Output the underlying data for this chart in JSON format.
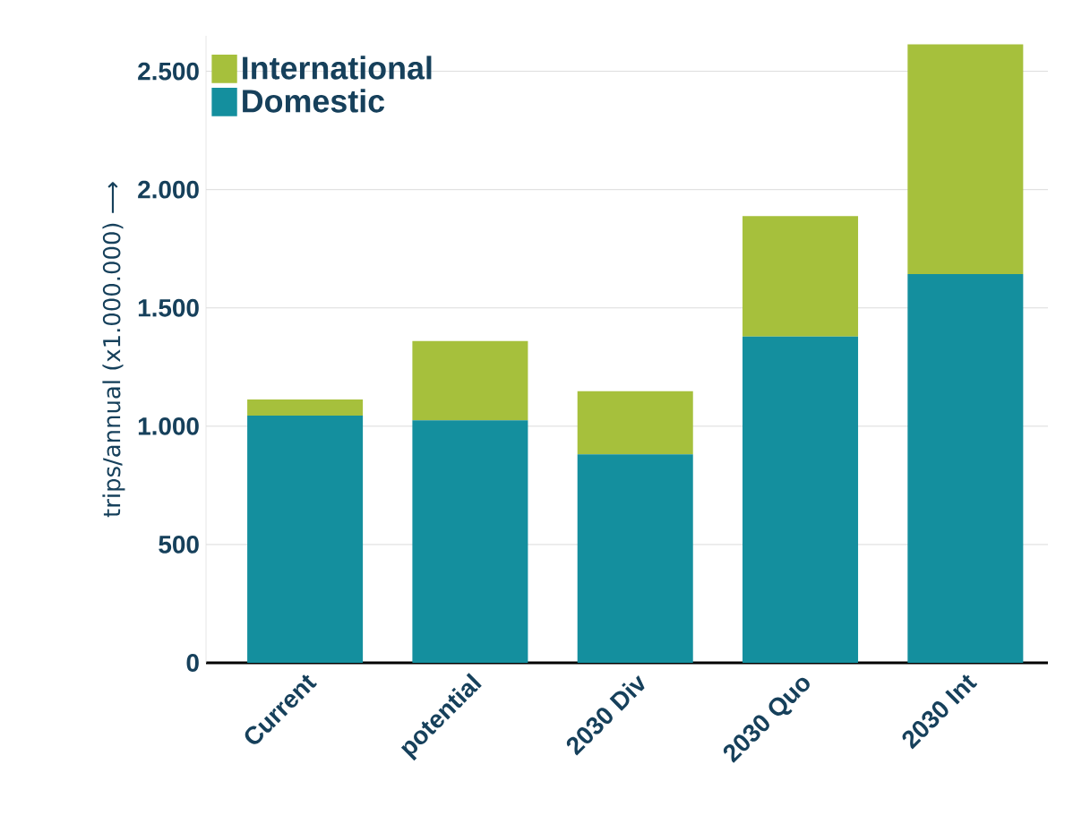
{
  "chart_data": {
    "type": "bar",
    "stacked": true,
    "ylabel": "trips/annual (x1.000.000) ⟶",
    "categories": [
      "Current",
      "potential",
      "2030 Div",
      "2030 Quo",
      "2030 Int"
    ],
    "series": [
      {
        "name": "Domestic",
        "color": "#148f9e",
        "values": [
          1045,
          1025,
          881,
          1379,
          1643
        ]
      },
      {
        "name": "International",
        "color": "#a6c03c",
        "values": [
          68,
          335,
          267,
          509,
          971
        ]
      }
    ],
    "ylim": [
      0,
      2650
    ],
    "yticks": [
      0,
      500,
      {
        "value": 1000,
        "label": "1.000"
      },
      {
        "value": 1500,
        "label": "1.500"
      },
      {
        "value": 2000,
        "label": "2.000"
      },
      {
        "value": 2500,
        "label": "2.500"
      }
    ],
    "grid": "y",
    "legend": "top left"
  }
}
